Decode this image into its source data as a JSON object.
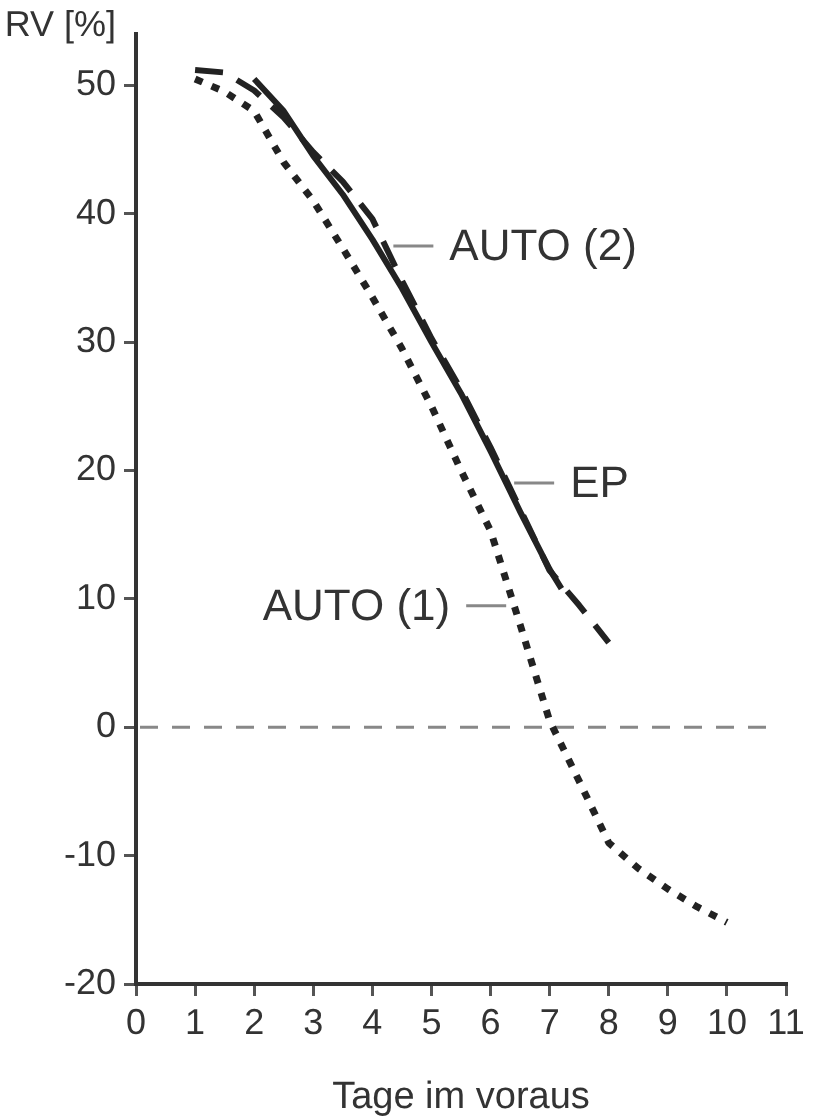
{
  "chart_data": {
    "type": "line",
    "xlabel": "Tage im voraus",
    "ylabel": "RV [%]",
    "xlim": [
      0,
      11
    ],
    "xticks": [
      0,
      1,
      2,
      3,
      4,
      5,
      6,
      7,
      8,
      9,
      10,
      11
    ],
    "ylim": [
      -20,
      54
    ],
    "yticks": [
      -20,
      -10,
      0,
      10,
      20,
      30,
      40,
      50
    ],
    "grid": false,
    "legend": false,
    "marker": "none",
    "ref_lines": [
      {
        "axis": "y",
        "value": 0,
        "color": "#888888",
        "line_style": "dashed"
      }
    ],
    "series": [
      {
        "name": "AUTO (2)",
        "color": "#222222",
        "line_style": "dashed",
        "x": [
          1,
          1.5,
          2,
          2.5,
          3,
          3.5,
          4,
          4.5,
          5,
          5.5,
          6,
          6.5,
          7,
          7.5,
          8
        ],
        "values": [
          51.2,
          51,
          49.6,
          47.5,
          44.8,
          42.5,
          39.6,
          34.8,
          30.3,
          26.3,
          21.8,
          17,
          12.2,
          9.5,
          6.6
        ]
      },
      {
        "name": "EP",
        "color": "#222222",
        "line_style": "solid",
        "x": [
          2,
          2.5,
          3,
          3.5,
          4,
          4.5,
          5,
          5.5,
          6,
          6.5,
          7,
          7.2
        ],
        "values": [
          50.5,
          48,
          44.5,
          41.5,
          38,
          34.2,
          30,
          26,
          21.5,
          16.8,
          12.3,
          10.8
        ]
      },
      {
        "name": "AUTO (1)",
        "color": "#222222",
        "line_style": "dotted",
        "x": [
          1,
          1.5,
          2,
          2.5,
          3,
          3.5,
          4,
          4.5,
          5,
          5.5,
          6,
          6.5,
          7,
          7.5,
          8,
          8.5,
          9,
          9.5,
          10
        ],
        "values": [
          50.5,
          49.5,
          48,
          44,
          41,
          37.3,
          33.5,
          29.5,
          25,
          20,
          15.3,
          8,
          0.5,
          -4.2,
          -9,
          -11,
          -12.6,
          -14,
          -15.2
        ]
      }
    ]
  }
}
